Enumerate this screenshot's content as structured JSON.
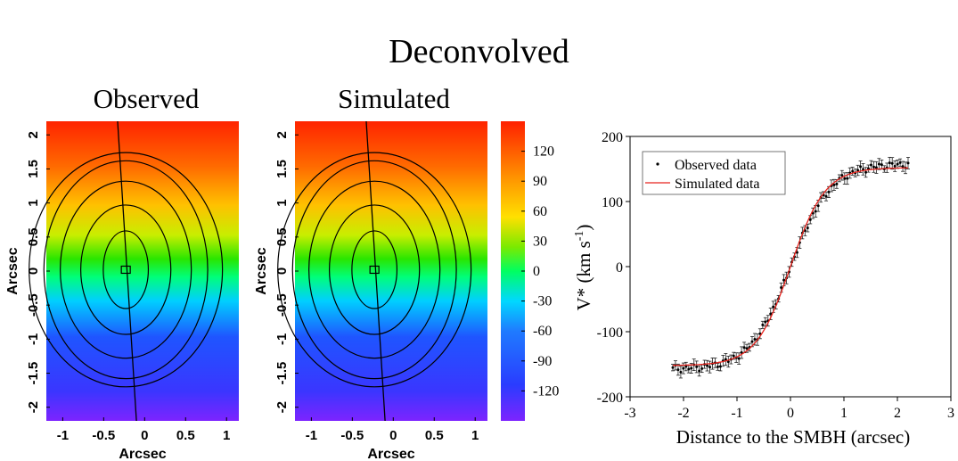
{
  "title": "Deconvolved",
  "panels": [
    {
      "title": "Observed",
      "xlabel": "Arcsec",
      "ylabel": "Arcsec"
    },
    {
      "title": "Simulated",
      "xlabel": "Arcsec",
      "ylabel": "Arcsec"
    }
  ],
  "chart_data": [
    {
      "type": "heatmap",
      "title": "Observed",
      "xlabel": "Arcsec",
      "ylabel": "Arcsec",
      "xlim": [
        -1.2,
        1.15
      ],
      "ylim": [
        -2.2,
        2.2
      ],
      "x_ticks": [
        "-1",
        "-0.5",
        "0",
        "0.5",
        "1"
      ],
      "y_ticks": [
        "2",
        "1.5",
        "1",
        "0.5",
        "0",
        "-0.5",
        "-1",
        "-1.5",
        "-2"
      ],
      "field": "velocity, -150 (bottom) to +150 (top)",
      "contours": 5,
      "center_marker": [
        -0.23,
        0.02
      ]
    },
    {
      "type": "heatmap",
      "title": "Simulated",
      "xlabel": "Arcsec",
      "ylabel": "Arcsec",
      "xlim": [
        -1.2,
        1.15
      ],
      "ylim": [
        -2.2,
        2.2
      ],
      "x_ticks": [
        "-1",
        "-0.5",
        "0",
        "0.5",
        "1"
      ],
      "y_ticks": [
        "2",
        "1.5",
        "1",
        "0.5",
        "0",
        "-0.5",
        "-1",
        "-1.5",
        "-2"
      ],
      "field": "velocity, -150 (bottom) to +150 (top)",
      "contours": 5,
      "center_marker": [
        -0.23,
        0.02
      ]
    },
    {
      "type": "colorbar",
      "range": [
        -150,
        150
      ],
      "tick_labels": [
        "120",
        "90",
        "60",
        "30",
        "0",
        "-30",
        "-60",
        "-90",
        "-120"
      ],
      "tick_values": [
        120,
        90,
        60,
        30,
        0,
        -30,
        -60,
        -90,
        -120
      ]
    },
    {
      "type": "scatter",
      "xlabel": "Distance to the SMBH (arcsec)",
      "ylabel_main": "V* (km s",
      "ylabel_sup": "-1",
      "ylabel_close": ")",
      "xlim": [
        -3,
        3
      ],
      "ylim": [
        -200,
        200
      ],
      "x_ticks": [
        -3,
        -2,
        -1,
        0,
        1,
        2,
        3
      ],
      "y_ticks": [
        200,
        100,
        0,
        -100,
        -200
      ],
      "legend": {
        "position": "top-left"
      },
      "series": [
        {
          "name": "Observed data",
          "style": "points-with-errorbars",
          "color": "#000000",
          "x_range": [
            -2.2,
            2.2
          ],
          "count": 90,
          "model": "158 * tanh(x / 0.75)"
        },
        {
          "name": "Simulated data",
          "style": "line",
          "color": "#e8231d",
          "x_range": [
            -2.2,
            2.2
          ],
          "model": "152 * tanh(x / 0.65)"
        }
      ]
    }
  ],
  "colors": {
    "spectrum": [
      "#7d24ff",
      "#3a36ff",
      "#1f55ff",
      "#00cfff",
      "#00ff7a",
      "#29e600",
      "#c8ee00",
      "#ffc100",
      "#ff6a00",
      "#ff2400"
    ]
  }
}
